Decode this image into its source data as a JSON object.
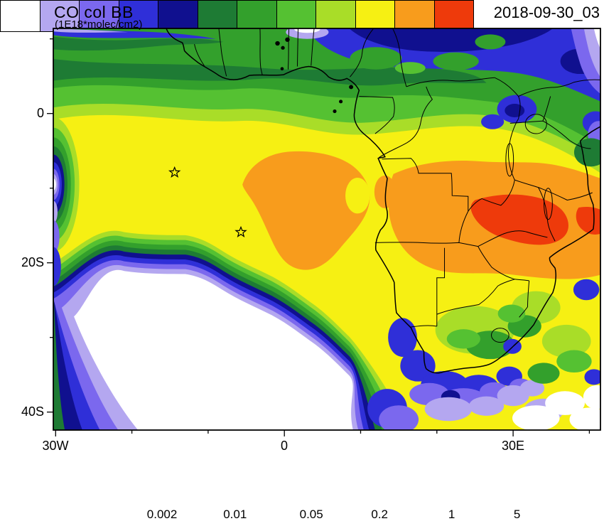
{
  "header": {
    "title": "CO col BB",
    "subtitle": "(1E18*molec/cm2)",
    "date": "2018-09-30_03"
  },
  "axes": {
    "y_labels": [
      "0",
      "20S",
      "40S"
    ],
    "x_labels": [
      "30W",
      "0",
      "30E"
    ]
  },
  "colorbar": {
    "labels": [
      "0.002",
      "0.01",
      "0.05",
      "0.2",
      "1",
      "5"
    ],
    "colors": [
      "#ffffff",
      "#b4a7f0",
      "#7b68ee",
      "#2f2fd8",
      "#10108f",
      "#1e7b34",
      "#33a02c",
      "#55c132",
      "#a9dd28",
      "#f6f013",
      "#f89c1c",
      "#ee3a0b"
    ]
  },
  "chart_data": {
    "type": "heatmap",
    "title": "CO col BB",
    "units": "1E18*molec/cm2",
    "timestamp": "2018-09-30_03",
    "projection": "lat-lon filled contour map over Africa / South Atlantic",
    "extent": {
      "lon_min": -30,
      "lon_max": 41,
      "lat_min": -42,
      "lat_max": 11
    },
    "axis": {
      "x_ticks_labeled": [
        "30W",
        "0",
        "30E"
      ],
      "y_ticks_labeled": [
        "0",
        "20S",
        "40S"
      ],
      "tick_interval_deg": 10
    },
    "contour_levels": [
      0.002,
      0.005,
      0.01,
      0.02,
      0.05,
      0.1,
      0.2,
      0.5,
      1,
      2,
      5
    ],
    "labeled_levels": [
      0.002,
      0.01,
      0.05,
      0.2,
      1,
      5
    ],
    "palette": [
      "#ffffff",
      "#b4a7f0",
      "#7b68ee",
      "#2f2fd8",
      "#10108f",
      "#1e7b34",
      "#33a02c",
      "#55c132",
      "#a9dd28",
      "#f6f013",
      "#f89c1c",
      "#ee3a0b"
    ],
    "markers": [
      {
        "symbol": "star",
        "lon": -14.4,
        "lat": -7.9
      },
      {
        "symbol": "star",
        "lon": -5.7,
        "lat": -15.9
      }
    ],
    "features": [
      {
        "region": "Zambia / Zimbabwe / eastern Angola biomass-burning core",
        "value_range": "2 to >5",
        "band": "orange-red maximum"
      },
      {
        "region": "South Atlantic smoke plume off Angola (~0E-10E, 5S-20S)",
        "value_range": "1-2",
        "band": "orange"
      },
      {
        "region": "Gulf of Guinea and central Africa background",
        "value_range": "0.5-1",
        "band": "yellow"
      },
      {
        "region": "northern tropics / Sahel",
        "value_range": "0.002-0.05",
        "band": "blue and dark blue"
      },
      {
        "region": "southwest Atlantic subtropical minimum",
        "value_range": "<0.002",
        "band": "white with tight blue-green gradient rim"
      },
      {
        "region": "south of Cape of Good Hope",
        "value_range": "0.002-0.05",
        "band": "blue/purple coastal fringe"
      }
    ]
  }
}
